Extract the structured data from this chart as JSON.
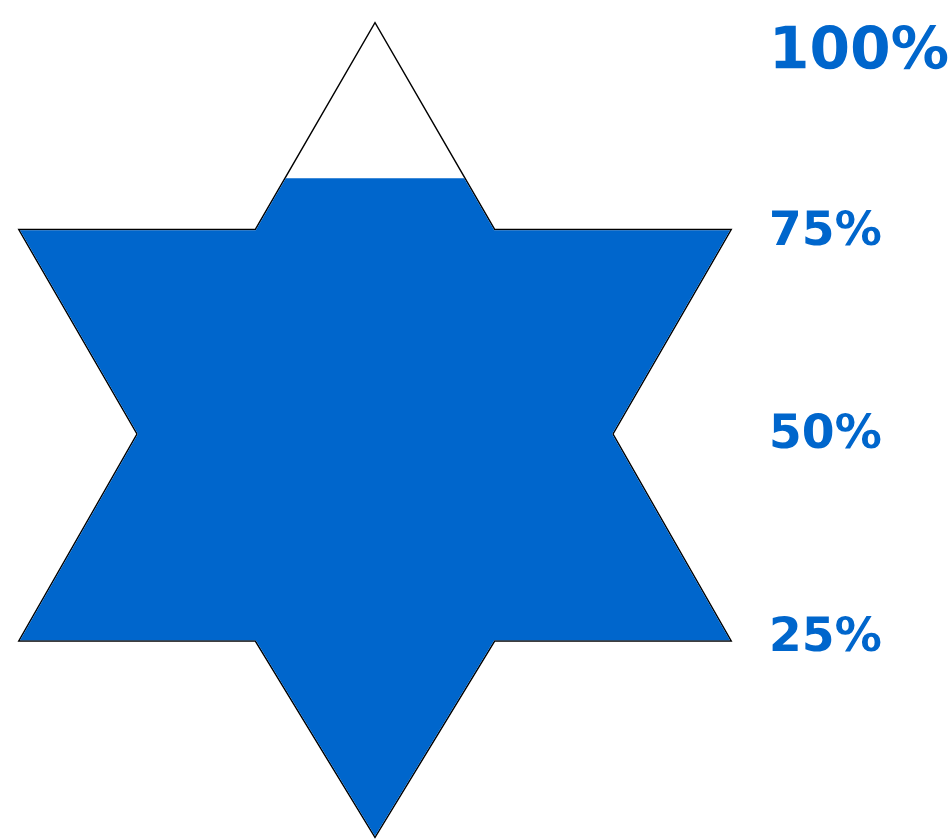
{
  "chart_data": {
    "type": "bar",
    "categories": [
      null
    ],
    "values": [
      81
    ],
    "color": "#0066cc",
    "ylim": [
      0,
      100
    ],
    "yticks": [
      {
        "value": 25,
        "label": "25%"
      },
      {
        "value": 50,
        "label": "50%"
      },
      {
        "value": 75,
        "label": "75%"
      },
      {
        "value": 100,
        "label": "100%"
      }
    ],
    "grid": false
  }
}
